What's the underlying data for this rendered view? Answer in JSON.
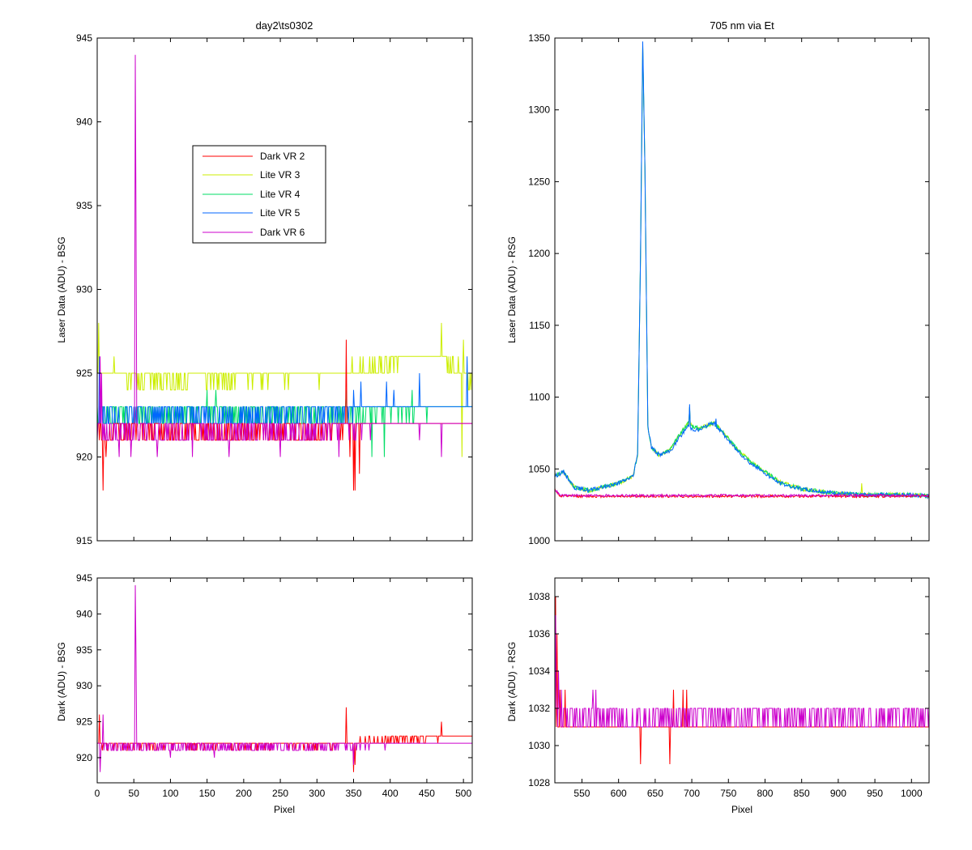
{
  "figure": {
    "background": "#ffffff"
  },
  "chart_data": [
    {
      "id": "top-left",
      "type": "line",
      "title": "day2\\ts0302",
      "xlabel": "",
      "ylabel": "Laser Data (ADU) - BSG",
      "xlim": [
        0,
        512
      ],
      "ylim": [
        915,
        945
      ],
      "xticks": [
        0,
        50,
        100,
        150,
        200,
        250,
        300,
        350,
        400,
        450,
        500
      ],
      "yticks": [
        915,
        920,
        925,
        930,
        935,
        940,
        945
      ],
      "show_xtick_labels": false,
      "legend": {
        "placement": "upper-left",
        "entries": [
          {
            "name": "Dark VR 2",
            "color": "#ff0000"
          },
          {
            "name": "Lite VR 3",
            "color": "#ccee00"
          },
          {
            "name": "Lite VR 4",
            "color": "#00dd66"
          },
          {
            "name": "Lite VR 5",
            "color": "#0066ff"
          },
          {
            "name": "Dark VR 6",
            "color": "#cc00cc"
          }
        ]
      },
      "series": [
        {
          "name": "Lite VR 3",
          "color": "#ccee00",
          "base": [
            [
              0,
              925
            ],
            [
              110,
              924.6
            ],
            [
              200,
              924.8
            ],
            [
              330,
              925
            ],
            [
              380,
              925.2
            ],
            [
              420,
              926
            ],
            [
              470,
              926
            ],
            [
              512,
              924.5
            ]
          ],
          "low": 924,
          "high": 926,
          "spikes": [
            [
              2,
              928
            ],
            [
              23,
              926
            ],
            [
              470,
              928
            ],
            [
              500,
              927
            ],
            [
              498,
              920
            ]
          ],
          "seed": 3
        },
        {
          "name": "Lite VR 4",
          "color": "#00dd66",
          "base": [
            [
              0,
              922.5
            ],
            [
              200,
              922.5
            ],
            [
              330,
              922.6
            ],
            [
              400,
              922.8
            ],
            [
              512,
              923.2
            ]
          ],
          "low": 922,
          "high": 923,
          "spikes": [
            [
              150,
              924
            ],
            [
              162,
              924
            ],
            [
              340,
              924
            ],
            [
              375,
              920
            ],
            [
              392,
              920
            ],
            [
              430,
              924
            ]
          ],
          "seed": 4
        },
        {
          "name": "Lite VR 5",
          "color": "#0066ff",
          "base": [
            [
              0,
              922.5
            ],
            [
              200,
              922.5
            ],
            [
              330,
              922.8
            ],
            [
              400,
              923.4
            ],
            [
              512,
              923.6
            ]
          ],
          "low": 922,
          "high": 923,
          "spikes": [
            [
              3,
              926
            ],
            [
              350,
              924
            ],
            [
              360,
              924.5
            ],
            [
              395,
              924.5
            ],
            [
              405,
              924
            ],
            [
              440,
              925
            ],
            [
              505,
              926
            ]
          ],
          "seed": 5
        },
        {
          "name": "Dark VR 2",
          "color": "#ff0000",
          "base": [
            [
              0,
              921.5
            ],
            [
              300,
              921.5
            ],
            [
              340,
              922
            ],
            [
              400,
              922
            ],
            [
              512,
              922.5
            ]
          ],
          "low": 921,
          "high": 922,
          "spikes": [
            [
              8,
              918
            ],
            [
              12,
              920
            ],
            [
              340,
              927
            ],
            [
              345,
              920
            ],
            [
              350,
              918
            ],
            [
              352,
              918
            ],
            [
              358,
              919
            ]
          ],
          "seed": 2
        },
        {
          "name": "Dark VR 6",
          "color": "#cc00cc",
          "base": [
            [
              0,
              921.5
            ],
            [
              300,
              921.5
            ],
            [
              340,
              921.8
            ],
            [
              420,
              922.2
            ],
            [
              512,
              922.5
            ]
          ],
          "low": 921,
          "high": 922,
          "spikes": [
            [
              52,
              944
            ],
            [
              53,
              934
            ],
            [
              4,
              926
            ],
            [
              6,
              925
            ],
            [
              30,
              920
            ],
            [
              46,
              920
            ],
            [
              82,
              920
            ],
            [
              130,
              920
            ],
            [
              180,
              920
            ],
            [
              250,
              920
            ],
            [
              330,
              920
            ],
            [
              440,
              921
            ],
            [
              470,
              920
            ]
          ],
          "seed": 6
        }
      ]
    },
    {
      "id": "top-right",
      "type": "line",
      "title": "705 nm via Et",
      "xlabel": "",
      "ylabel": "Laser Data (ADU) - RSG",
      "xlim": [
        513,
        1024
      ],
      "ylim": [
        1000,
        1350
      ],
      "xticks": [
        550,
        600,
        650,
        700,
        750,
        800,
        850,
        900,
        950,
        1000
      ],
      "yticks": [
        1000,
        1050,
        1100,
        1150,
        1200,
        1250,
        1300,
        1350
      ],
      "show_xtick_labels": false,
      "series": [
        {
          "name": "Lite VR 3",
          "color": "#ccee00",
          "curve": [
            [
              513,
              1045
            ],
            [
              525,
              1048
            ],
            [
              540,
              1037
            ],
            [
              560,
              1035
            ],
            [
              600,
              1040
            ],
            [
              620,
              1045
            ],
            [
              626,
              1060
            ],
            [
              630,
              1200
            ],
            [
              633,
              1345
            ],
            [
              636,
              1260
            ],
            [
              640,
              1080
            ],
            [
              645,
              1065
            ],
            [
              655,
              1060
            ],
            [
              670,
              1063
            ],
            [
              685,
              1075
            ],
            [
              695,
              1082
            ],
            [
              700,
              1080
            ],
            [
              710,
              1078
            ],
            [
              720,
              1080
            ],
            [
              730,
              1082
            ],
            [
              740,
              1077
            ],
            [
              760,
              1065
            ],
            [
              780,
              1055
            ],
            [
              800,
              1048
            ],
            [
              820,
              1041
            ],
            [
              850,
              1036
            ],
            [
              880,
              1034
            ],
            [
              900,
              1033
            ],
            [
              930,
              1032
            ],
            [
              960,
              1032
            ],
            [
              1000,
              1032
            ],
            [
              1024,
              1031
            ]
          ],
          "spikes": [
            [
              697,
              1093
            ],
            [
              932,
              1040
            ]
          ],
          "noise": 1.4,
          "seed": 13
        },
        {
          "name": "Lite VR 4",
          "color": "#00dd66",
          "curve": [
            [
              513,
              1045
            ],
            [
              525,
              1048
            ],
            [
              540,
              1037
            ],
            [
              560,
              1035
            ],
            [
              600,
              1040
            ],
            [
              620,
              1045
            ],
            [
              626,
              1060
            ],
            [
              630,
              1200
            ],
            [
              633,
              1345
            ],
            [
              636,
              1260
            ],
            [
              640,
              1080
            ],
            [
              645,
              1065
            ],
            [
              655,
              1060
            ],
            [
              670,
              1063
            ],
            [
              685,
              1075
            ],
            [
              695,
              1082
            ],
            [
              700,
              1080
            ],
            [
              710,
              1078
            ],
            [
              720,
              1080
            ],
            [
              730,
              1082
            ],
            [
              740,
              1077
            ],
            [
              760,
              1065
            ],
            [
              780,
              1055
            ],
            [
              800,
              1048
            ],
            [
              820,
              1041
            ],
            [
              850,
              1036
            ],
            [
              880,
              1034
            ],
            [
              900,
              1033
            ],
            [
              930,
              1032
            ],
            [
              960,
              1032
            ],
            [
              1000,
              1032
            ],
            [
              1024,
              1031
            ]
          ],
          "spikes": [
            [
              697,
              1093
            ]
          ],
          "noise": 1.4,
          "seed": 14
        },
        {
          "name": "Lite VR 5",
          "color": "#0066ff",
          "curve": [
            [
              513,
              1045
            ],
            [
              525,
              1048
            ],
            [
              540,
              1037
            ],
            [
              560,
              1035
            ],
            [
              600,
              1040
            ],
            [
              620,
              1045
            ],
            [
              626,
              1060
            ],
            [
              630,
              1200
            ],
            [
              633,
              1347
            ],
            [
              636,
              1260
            ],
            [
              640,
              1080
            ],
            [
              645,
              1065
            ],
            [
              655,
              1060
            ],
            [
              670,
              1062
            ],
            [
              685,
              1073
            ],
            [
              695,
              1080
            ],
            [
              700,
              1078
            ],
            [
              710,
              1077
            ],
            [
              720,
              1080
            ],
            [
              730,
              1082
            ],
            [
              740,
              1076
            ],
            [
              760,
              1064
            ],
            [
              780,
              1054
            ],
            [
              800,
              1047
            ],
            [
              820,
              1040
            ],
            [
              850,
              1036
            ],
            [
              880,
              1034
            ],
            [
              900,
              1033
            ],
            [
              930,
              1032
            ],
            [
              960,
              1032
            ],
            [
              1000,
              1032
            ],
            [
              1024,
              1031
            ]
          ],
          "spikes": [
            [
              697,
              1095
            ],
            [
              733,
              1085
            ]
          ],
          "noise": 1.4,
          "seed": 15
        },
        {
          "name": "Dark VR 2",
          "color": "#ff0000",
          "curve": [
            [
              513,
              1036
            ],
            [
              520,
              1031
            ],
            [
              1024,
              1031
            ]
          ],
          "spikes": [],
          "noise": 0.9,
          "seed": 12
        },
        {
          "name": "Dark VR 6",
          "color": "#cc00cc",
          "curve": [
            [
              513,
              1036
            ],
            [
              520,
              1031.5
            ],
            [
              1024,
              1031.5
            ]
          ],
          "spikes": [],
          "noise": 0.9,
          "seed": 16
        }
      ]
    },
    {
      "id": "bottom-left",
      "type": "line",
      "title": "",
      "xlabel": "Pixel",
      "ylabel": "Dark (ADU) - BSG",
      "xlim": [
        0,
        512
      ],
      "ylim": [
        916.5,
        945
      ],
      "xticks": [
        0,
        50,
        100,
        150,
        200,
        250,
        300,
        350,
        400,
        450,
        500
      ],
      "yticks": [
        920,
        925,
        930,
        935,
        940,
        945
      ],
      "show_xtick_labels": true,
      "series": [
        {
          "name": "Dark VR 2",
          "color": "#ff0000",
          "base": [
            [
              0,
              921.8
            ],
            [
              300,
              921.8
            ],
            [
              340,
              922
            ],
            [
              400,
              922.5
            ],
            [
              512,
              923.2
            ]
          ],
          "low": 921,
          "high": 923,
          "spikes": [
            [
              3,
              926
            ],
            [
              340,
              927
            ],
            [
              350,
              918
            ],
            [
              352,
              919
            ],
            [
              470,
              925
            ]
          ],
          "seed": 22
        },
        {
          "name": "Dark VR 6",
          "color": "#cc00cc",
          "base": [
            [
              0,
              921.5
            ],
            [
              300,
              921.5
            ],
            [
              400,
              922
            ],
            [
              512,
              922.3
            ]
          ],
          "low": 921,
          "high": 922,
          "spikes": [
            [
              52,
              944
            ],
            [
              53,
              934
            ],
            [
              4,
              918
            ],
            [
              8,
              926
            ],
            [
              100,
              920
            ],
            [
              160,
              920
            ],
            [
              350,
              919
            ]
          ],
          "seed": 26
        }
      ]
    },
    {
      "id": "bottom-right",
      "type": "line",
      "title": "",
      "xlabel": "Pixel",
      "ylabel": "Dark (ADU) - RSG",
      "xlim": [
        513,
        1024
      ],
      "ylim": [
        1028,
        1039
      ],
      "xticks": [
        550,
        600,
        650,
        700,
        750,
        800,
        850,
        900,
        950,
        1000
      ],
      "yticks": [
        1028,
        1030,
        1032,
        1034,
        1036,
        1038
      ],
      "show_xtick_labels": true,
      "series": [
        {
          "name": "Dark VR 2",
          "color": "#ff0000",
          "base": [
            [
              513,
              1031
            ],
            [
              1024,
              1031
            ]
          ],
          "low": 1030,
          "high": 1032,
          "spikes": [
            [
              514,
              1038
            ],
            [
              516,
              1036
            ],
            [
              520,
              1033
            ],
            [
              527,
              1033
            ],
            [
              630,
              1029
            ],
            [
              670,
              1029
            ],
            [
              675,
              1033
            ],
            [
              688,
              1033
            ],
            [
              693,
              1033
            ]
          ],
          "seed": 32
        },
        {
          "name": "Dark VR 6",
          "color": "#cc00cc",
          "base": [
            [
              513,
              1031.5
            ],
            [
              1024,
              1031.5
            ]
          ],
          "low": 1030,
          "high": 1032,
          "spikes": [
            [
              514,
              1037
            ],
            [
              518,
              1034
            ],
            [
              522,
              1033
            ],
            [
              565,
              1033
            ],
            [
              569,
              1033
            ]
          ],
          "seed": 36
        }
      ]
    }
  ]
}
